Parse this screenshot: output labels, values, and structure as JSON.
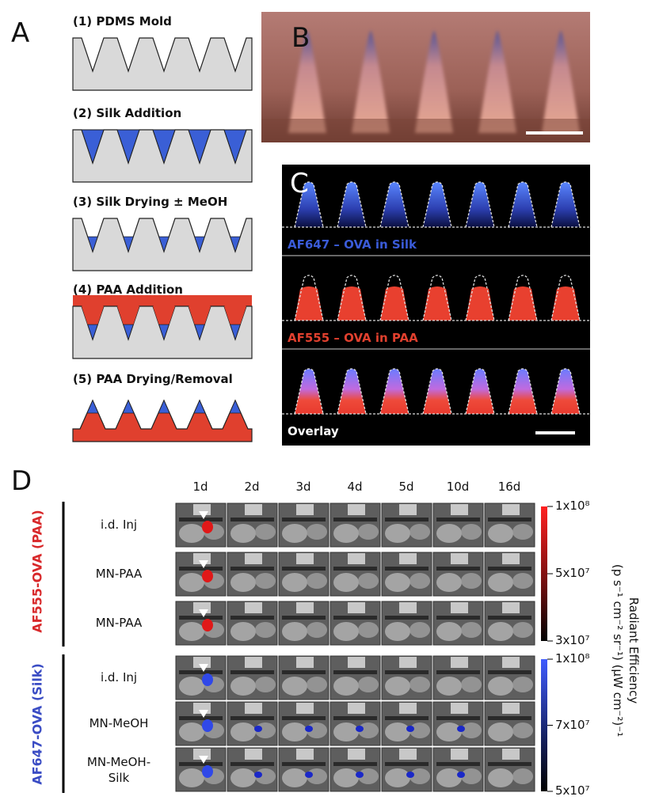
{
  "panels": {
    "a": "A",
    "b": "B",
    "c": "C",
    "d": "D"
  },
  "steps": [
    "(1) PDMS Mold",
    "(2) Silk Addition",
    "(3) Silk Drying ± MeOH",
    "(4) PAA Addition",
    "(5) PAA Drying/Removal"
  ],
  "panel_c": {
    "rows": [
      "AF647 – OVA in Silk",
      "AF555 – OVA in PAA",
      "Overlay"
    ]
  },
  "panel_d": {
    "columns": [
      "1d",
      "2d",
      "3d",
      "4d",
      "5d",
      "10d",
      "16d"
    ],
    "groups": [
      {
        "label": "AF555-OVA (PAA)",
        "rows": [
          "i.d. Inj",
          "MN-PAA",
          "MN-PAA"
        ]
      },
      {
        "label": "AF647-OVA (Silk)",
        "rows": [
          "i.d. Inj",
          "MN-MeOH",
          "MN-MeOH-Silk"
        ]
      }
    ],
    "colorbars": [
      {
        "ticks": [
          "1x10⁸",
          "5x10⁷",
          "3x10⁷"
        ]
      },
      {
        "ticks": [
          "1x10⁸",
          "7x10⁷",
          "5x10⁷"
        ]
      }
    ],
    "colorbar_title": [
      "Radiant Efficiency",
      "(p s⁻¹ cm⁻² sr⁻¹) (µW cm⁻²)⁻¹"
    ]
  }
}
